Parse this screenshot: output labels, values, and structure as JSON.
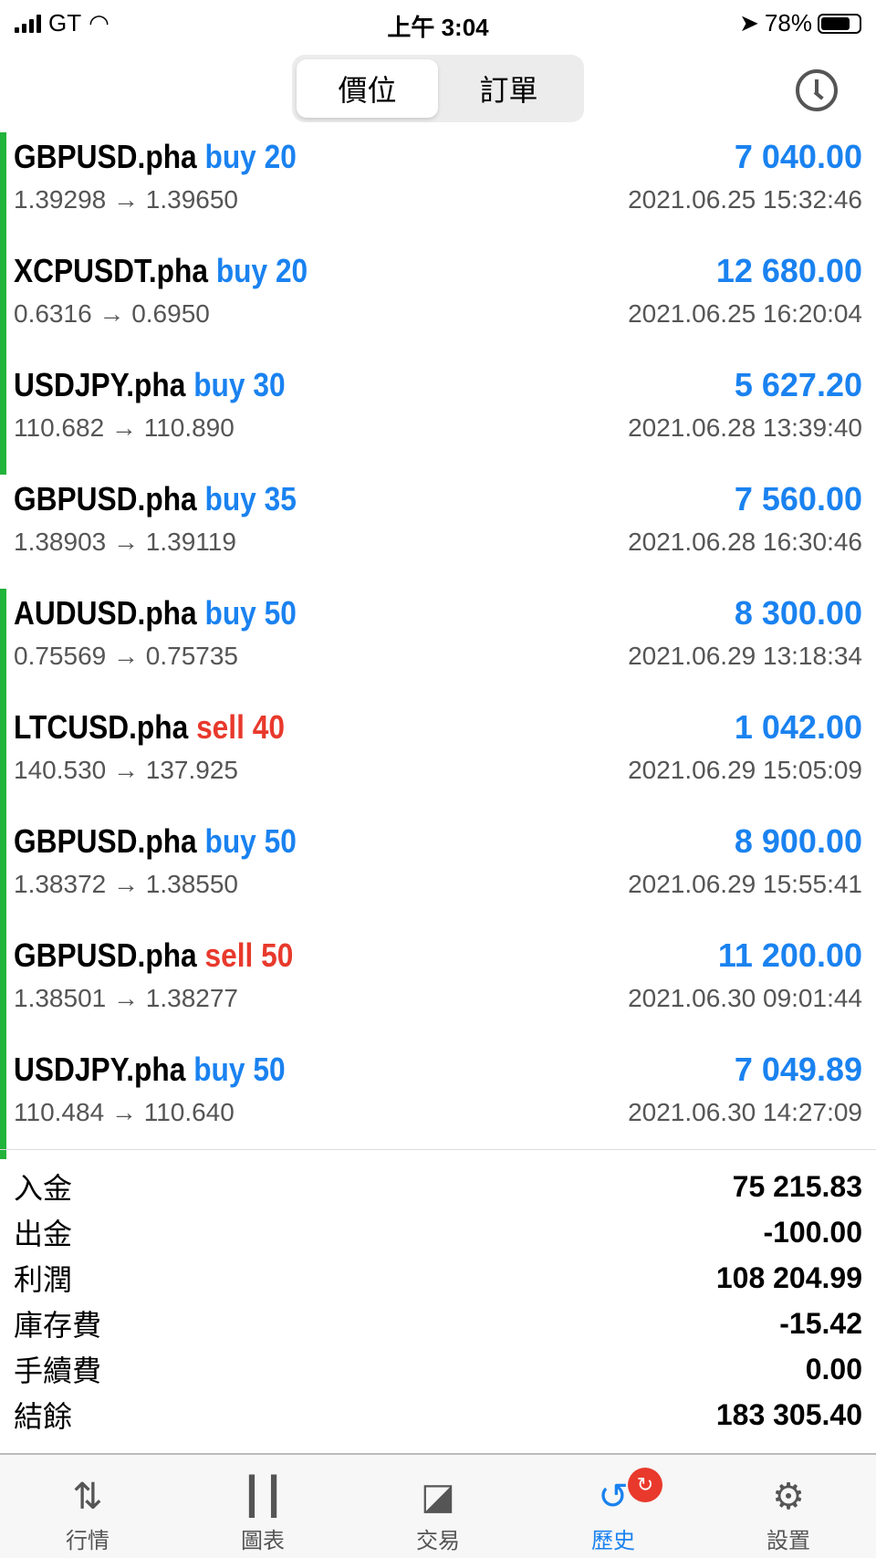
{
  "status": {
    "carrier": "GT",
    "time": "上午 3:04",
    "battery": "78%"
  },
  "tabs": [
    {
      "label": "價位",
      "active": true
    },
    {
      "label": "訂單",
      "active": false
    }
  ],
  "trades": [
    {
      "symbol": "GBPUSD.pha",
      "side": "buy",
      "volume": "buy 20",
      "profit": "7 040.00",
      "prices": "1.39298 → 1.39650",
      "time": "2021.06.25 15:32:46",
      "marker": true
    },
    {
      "symbol": "XCPUSDT.pha",
      "side": "buy",
      "volume": "buy 20",
      "profit": "12 680.00",
      "prices": "0.6316 → 0.6950",
      "time": "2021.06.25 16:20:04",
      "marker": true
    },
    {
      "symbol": "USDJPY.pha",
      "side": "buy",
      "volume": "buy 30",
      "profit": "5 627.20",
      "prices": "110.682 → 110.890",
      "time": "2021.06.28 13:39:40",
      "marker": true
    },
    {
      "symbol": "GBPUSD.pha",
      "side": "buy",
      "volume": "buy 35",
      "profit": "7 560.00",
      "prices": "1.38903 → 1.39119",
      "time": "2021.06.28 16:30:46",
      "marker": false
    },
    {
      "symbol": "AUDUSD.pha",
      "side": "buy",
      "volume": "buy 50",
      "profit": "8 300.00",
      "prices": "0.75569 → 0.75735",
      "time": "2021.06.29 13:18:34",
      "marker": true
    },
    {
      "symbol": "LTCUSD.pha",
      "side": "sell",
      "volume": "sell 40",
      "profit": "1 042.00",
      "prices": "140.530 → 137.925",
      "time": "2021.06.29 15:05:09",
      "marker": true
    },
    {
      "symbol": "GBPUSD.pha",
      "side": "buy",
      "volume": "buy 50",
      "profit": "8 900.00",
      "prices": "1.38372 → 1.38550",
      "time": "2021.06.29 15:55:41",
      "marker": true
    },
    {
      "symbol": "GBPUSD.pha",
      "side": "sell",
      "volume": "sell 50",
      "profit": "11 200.00",
      "prices": "1.38501 → 1.38277",
      "time": "2021.06.30 09:01:44",
      "marker": true
    },
    {
      "symbol": "USDJPY.pha",
      "side": "buy",
      "volume": "buy 50",
      "profit": "7 049.89",
      "prices": "110.484 → 110.640",
      "time": "2021.06.30 14:27:09",
      "marker": true
    }
  ],
  "summary": [
    {
      "label": "入金",
      "value": "75 215.83"
    },
    {
      "label": "出金",
      "value": "-100.00"
    },
    {
      "label": "利潤",
      "value": "108 204.99"
    },
    {
      "label": "庫存費",
      "value": "-15.42"
    },
    {
      "label": "手續費",
      "value": "0.00"
    },
    {
      "label": "結餘",
      "value": "183 305.40"
    }
  ],
  "nav": [
    {
      "label": "行情",
      "icon": "arrows-icon"
    },
    {
      "label": "圖表",
      "icon": "candlestick-icon"
    },
    {
      "label": "交易",
      "icon": "chart-line-icon"
    },
    {
      "label": "歷史",
      "icon": "history-icon",
      "active": true
    },
    {
      "label": "設置",
      "icon": "gear-icon"
    }
  ],
  "colors": {
    "buy": "#1a82f0",
    "sell": "#e8392c",
    "marker": "#22b33a"
  }
}
